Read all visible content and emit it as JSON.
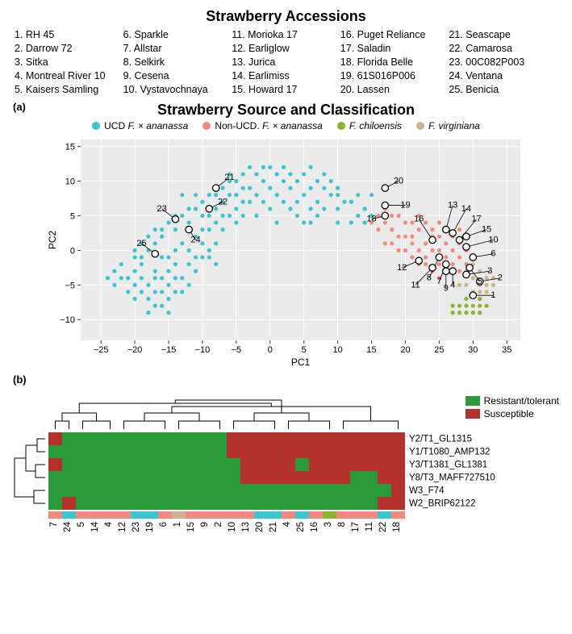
{
  "accessions": {
    "title": "Strawberry Accessions",
    "items": [
      "1. RH 45",
      "2. Darrow 72",
      "3. Sitka",
      "4. Montreal River 10",
      "5. Kaisers Samling",
      "6. Sparkle",
      "7. Allstar",
      "8. Selkirk",
      "9. Cesena",
      "10. Vystavochnaya",
      "11. Morioka 17",
      "12. Earliglow",
      "13. Jurica",
      "14. Earlimiss",
      "15. Howard 17",
      "16. Puget Reliance",
      "17. Saladin",
      "18. Florida Belle",
      "19. 61S016P006",
      "20. Lassen",
      "21. Seascape",
      "22. Camarosa",
      "23. 00C082P003",
      "24. Ventana",
      "25. Benicia"
    ]
  },
  "panel_a_label": "(a)",
  "panel_b_label": "(b)",
  "scatter": {
    "title": "Strawberry Source and Classification",
    "xlabel": "PC1",
    "ylabel": "PC2",
    "xlim": [
      -28,
      37
    ],
    "ylim": [
      -13,
      16
    ],
    "xticks": [
      -25,
      -20,
      -15,
      -10,
      -5,
      0,
      5,
      10,
      15,
      20,
      25,
      30,
      35
    ],
    "yticks": [
      -10,
      -5,
      0,
      5,
      10,
      15
    ],
    "bg": "#ebebeb",
    "grid": "#ffffff",
    "series": [
      {
        "name": "UCD F. × ananassa",
        "color": "#3bc6cf",
        "italic_part": "F. × ananassa"
      },
      {
        "name": "Non-UCD. F. × ananassa",
        "color": "#f48a7f",
        "italic_part": "F. × ananassa"
      },
      {
        "name": "F. chiloensis",
        "color": "#8bb52e",
        "italic_part": "F. chiloensis"
      },
      {
        "name": "F. virginiana",
        "color": "#cbb58f",
        "italic_part": "F. virginiana"
      }
    ],
    "cloud": {
      "ucd": {
        "color": "#3bc6cf",
        "points": [
          [
            -18,
            -5
          ],
          [
            -17,
            -3
          ],
          [
            -16,
            -4
          ],
          [
            -19,
            -2
          ],
          [
            -18,
            -7
          ],
          [
            -20,
            -5
          ],
          [
            -17,
            -6
          ],
          [
            -15,
            -3
          ],
          [
            -16,
            -1
          ],
          [
            -18,
            0
          ],
          [
            -19,
            -4
          ],
          [
            -17,
            1
          ],
          [
            -15,
            -5
          ],
          [
            -14,
            -2
          ],
          [
            -20,
            -3
          ],
          [
            -16,
            -6
          ],
          [
            -15,
            -7
          ],
          [
            -13,
            -4
          ],
          [
            -14,
            0
          ],
          [
            -12,
            -2
          ],
          [
            -13,
            1
          ],
          [
            -11,
            -3
          ],
          [
            -10,
            -1
          ],
          [
            -12,
            -5
          ],
          [
            -11,
            2
          ],
          [
            -9,
            0
          ],
          [
            -10,
            3
          ],
          [
            -8,
            1
          ],
          [
            -9,
            5
          ],
          [
            -7,
            3
          ],
          [
            -8,
            6
          ],
          [
            -7,
            7
          ],
          [
            -6,
            5
          ],
          [
            -5,
            6
          ],
          [
            -6,
            8
          ],
          [
            -4,
            7
          ],
          [
            -3,
            9
          ],
          [
            -5,
            10
          ],
          [
            -2,
            8
          ],
          [
            -4,
            11
          ],
          [
            -1,
            10
          ],
          [
            0,
            9
          ],
          [
            -3,
            12
          ],
          [
            1,
            8
          ],
          [
            2,
            10
          ],
          [
            -1,
            12
          ],
          [
            3,
            9
          ],
          [
            2,
            12
          ],
          [
            4,
            10
          ],
          [
            0,
            12
          ],
          [
            5,
            8
          ],
          [
            4,
            7
          ],
          [
            3,
            11
          ],
          [
            6,
            9
          ],
          [
            5,
            11
          ],
          [
            7,
            10
          ],
          [
            6,
            12
          ],
          [
            7,
            7
          ],
          [
            8,
            9
          ],
          [
            8,
            6
          ],
          [
            -21,
            -4
          ],
          [
            -22,
            -2
          ],
          [
            -19,
            -6
          ],
          [
            -16,
            2
          ],
          [
            -15,
            4
          ],
          [
            -14,
            3
          ],
          [
            -13,
            5
          ],
          [
            -12,
            4
          ],
          [
            -11,
            6
          ],
          [
            -10,
            7
          ],
          [
            -18,
            -9
          ],
          [
            -17,
            -8
          ],
          [
            -21,
            -6
          ],
          [
            -20,
            -7
          ],
          [
            -15,
            -1
          ],
          [
            -14,
            -4
          ],
          [
            -13,
            -6
          ],
          [
            -16,
            -8
          ],
          [
            -10,
            5
          ],
          [
            -9,
            3
          ],
          [
            -8,
            4
          ],
          [
            -9,
            8
          ],
          [
            -7,
            9
          ],
          [
            -6,
            10
          ],
          [
            -19,
            -1
          ],
          [
            -18,
            2
          ],
          [
            -17,
            3
          ],
          [
            -22,
            -4
          ],
          [
            -23,
            -3
          ],
          [
            -20,
            -1
          ],
          [
            -19,
            1
          ],
          [
            -16,
            3
          ],
          [
            -14,
            5
          ],
          [
            -12,
            6
          ],
          [
            -13,
            8
          ],
          [
            -11,
            8
          ],
          [
            -8,
            8
          ],
          [
            -5,
            8
          ],
          [
            -6,
            11
          ],
          [
            1,
            11
          ],
          [
            2,
            7
          ],
          [
            -2,
            11
          ],
          [
            -4,
            9
          ],
          [
            -1,
            7
          ],
          [
            0,
            6
          ],
          [
            -3,
            7
          ],
          [
            -7,
            5
          ],
          [
            -14,
            -6
          ],
          [
            -12,
            0
          ],
          [
            -11,
            -1
          ],
          [
            -10,
            1
          ],
          [
            -8,
            -2
          ],
          [
            -9,
            -1
          ],
          [
            9,
            8
          ],
          [
            10,
            6
          ],
          [
            9,
            10
          ],
          [
            10,
            8
          ],
          [
            -15,
            -9
          ],
          [
            -20,
            0
          ],
          [
            -17,
            -4
          ],
          [
            1,
            4
          ],
          [
            3,
            6
          ],
          [
            4,
            5
          ],
          [
            5,
            4
          ],
          [
            6,
            6
          ],
          [
            -2,
            5
          ],
          [
            8,
            11
          ],
          [
            6,
            4
          ],
          [
            7,
            5
          ],
          [
            10,
            9
          ],
          [
            10,
            4
          ],
          [
            -5,
            4
          ],
          [
            -4,
            5
          ],
          [
            13,
            5
          ],
          [
            12,
            7
          ],
          [
            14,
            6
          ],
          [
            11,
            7
          ],
          [
            12,
            4
          ],
          [
            13,
            8
          ],
          [
            14,
            4
          ],
          [
            15,
            5
          ],
          [
            15,
            8
          ],
          [
            -23,
            -5
          ],
          [
            -24,
            -4
          ]
        ]
      },
      "nonucd": {
        "color": "#f48a7f",
        "points": [
          [
            17,
            4
          ],
          [
            18,
            3
          ],
          [
            19,
            5
          ],
          [
            20,
            2
          ],
          [
            21,
            4
          ],
          [
            22,
            3
          ],
          [
            23,
            1
          ],
          [
            24,
            2
          ],
          [
            25,
            0
          ],
          [
            23,
            4
          ],
          [
            24,
            0
          ],
          [
            26,
            1
          ],
          [
            25,
            2
          ],
          [
            27,
            0
          ],
          [
            26,
            -1
          ],
          [
            22,
            0
          ],
          [
            21,
            1
          ],
          [
            20,
            4
          ],
          [
            19,
            2
          ],
          [
            18,
            5
          ],
          [
            17,
            6
          ],
          [
            20,
            0
          ],
          [
            21,
            -1
          ],
          [
            22,
            -2
          ],
          [
            25,
            -2
          ],
          [
            27,
            -2
          ],
          [
            28,
            -1
          ],
          [
            28,
            1
          ],
          [
            29,
            0
          ],
          [
            24,
            3
          ],
          [
            25,
            4
          ],
          [
            16,
            3
          ],
          [
            17,
            1
          ],
          [
            23,
            -2
          ],
          [
            21,
            2
          ],
          [
            26,
            3
          ],
          [
            27,
            2
          ],
          [
            28,
            -3
          ],
          [
            18,
            1
          ],
          [
            19,
            0
          ],
          [
            16,
            5
          ],
          [
            15,
            4
          ],
          [
            29,
            -2
          ],
          [
            22,
            5
          ],
          [
            23,
            -1
          ],
          [
            24,
            -3
          ],
          [
            25,
            -4
          ],
          [
            28,
            3
          ]
        ]
      },
      "chil": {
        "color": "#8bb52e",
        "points": [
          [
            28,
            -8
          ],
          [
            29,
            -7
          ],
          [
            30,
            -8
          ],
          [
            31,
            -7
          ],
          [
            29,
            -9
          ],
          [
            30,
            -9
          ],
          [
            31,
            -8
          ],
          [
            32,
            -8
          ],
          [
            28,
            -9
          ],
          [
            27,
            -8
          ],
          [
            30,
            -6
          ],
          [
            29,
            -8
          ],
          [
            31,
            -9
          ],
          [
            27,
            -9
          ]
        ]
      },
      "virg": {
        "color": "#cbb58f",
        "points": [
          [
            29,
            -5
          ],
          [
            30,
            -4
          ],
          [
            31,
            -5
          ],
          [
            30,
            -6
          ],
          [
            32,
            -5
          ],
          [
            31,
            -3
          ],
          [
            29,
            -3
          ],
          [
            30,
            -2
          ],
          [
            32,
            -6
          ],
          [
            33,
            -5
          ],
          [
            31,
            -6
          ],
          [
            28,
            -5
          ],
          [
            32,
            -4
          ],
          [
            33,
            -4
          ]
        ]
      }
    },
    "numbered": [
      {
        "n": 1,
        "x": 30,
        "y": -6.5,
        "lx": 33,
        "ly": -6.5
      },
      {
        "n": 2,
        "x": 31,
        "y": -4.5,
        "lx": 34,
        "ly": -4
      },
      {
        "n": 3,
        "x": 29,
        "y": -3.5,
        "lx": 32.5,
        "ly": -3
      },
      {
        "n": 4,
        "x": 27,
        "y": -3,
        "lx": 27,
        "ly": -5
      },
      {
        "n": 5,
        "x": 29.5,
        "y": -2.5,
        "lx": 31,
        "ly": -4.5
      },
      {
        "n": 6,
        "x": 30,
        "y": -1,
        "lx": 33,
        "ly": -0.5
      },
      {
        "n": 7,
        "x": 26,
        "y": -2,
        "lx": 25,
        "ly": -4.5
      },
      {
        "n": 8,
        "x": 25,
        "y": -1,
        "lx": 23.5,
        "ly": -4
      },
      {
        "n": 9,
        "x": 26,
        "y": -3,
        "lx": 26,
        "ly": -5.5
      },
      {
        "n": 10,
        "x": 29,
        "y": 0.5,
        "lx": 33,
        "ly": 1.5
      },
      {
        "n": 11,
        "x": 24,
        "y": -2.5,
        "lx": 21.5,
        "ly": -5
      },
      {
        "n": 12,
        "x": 22,
        "y": -1.5,
        "lx": 19.5,
        "ly": -2.5
      },
      {
        "n": 13,
        "x": 26,
        "y": 3,
        "lx": 27,
        "ly": 6.5
      },
      {
        "n": 14,
        "x": 27,
        "y": 2.5,
        "lx": 29,
        "ly": 6
      },
      {
        "n": 15,
        "x": 29,
        "y": 2,
        "lx": 32,
        "ly": 3
      },
      {
        "n": 16,
        "x": 24,
        "y": 1.5,
        "lx": 22,
        "ly": 4.5
      },
      {
        "n": 17,
        "x": 28,
        "y": 1.5,
        "lx": 30.5,
        "ly": 4.5
      },
      {
        "n": 18,
        "x": 17,
        "y": 5,
        "lx": 15,
        "ly": 4.5
      },
      {
        "n": 19,
        "x": 17,
        "y": 6.5,
        "lx": 20,
        "ly": 6.5
      },
      {
        "n": 20,
        "x": 17,
        "y": 9,
        "lx": 19,
        "ly": 10
      },
      {
        "n": 21,
        "x": -8,
        "y": 9,
        "lx": -6,
        "ly": 10.5
      },
      {
        "n": 22,
        "x": -9,
        "y": 6,
        "lx": -7,
        "ly": 7
      },
      {
        "n": 23,
        "x": -14,
        "y": 4.5,
        "lx": -16,
        "ly": 6
      },
      {
        "n": 24,
        "x": -12,
        "y": 3,
        "lx": -11,
        "ly": 1.5
      },
      {
        "n": 25,
        "x": -17,
        "y": -0.5,
        "lx": -19,
        "ly": 1
      }
    ]
  },
  "heatmap": {
    "colors": {
      "resistant": "#2b9b3a",
      "susceptible": "#b1322c"
    },
    "legend": [
      {
        "label": "Resistant/tolerant",
        "color": "#2b9b3a"
      },
      {
        "label": "Susceptible",
        "color": "#b1322c"
      }
    ],
    "rows": [
      "Y2/T1_GL1315",
      "Y1/T1080_AMP132",
      "Y3/T1381_GL1381",
      "Y8/T3_MAFF727510",
      "W3_F74",
      "W2_BRIP62122"
    ],
    "cols": [
      "7",
      "24",
      "5",
      "14",
      "4",
      "12",
      "23",
      "19",
      "6",
      "1",
      "15",
      "9",
      "2",
      "10",
      "13",
      "20",
      "21",
      "4",
      "25",
      "16",
      "3",
      "8",
      "17",
      "11",
      "22",
      "18"
    ],
    "col_classes": [
      "N",
      "U",
      "N",
      "N",
      "N",
      "N",
      "U",
      "U",
      "N",
      "V",
      "N",
      "N",
      "N",
      "N",
      "N",
      "U",
      "U",
      "N",
      "U",
      "N",
      "C",
      "N",
      "N",
      "N",
      "U",
      "N"
    ],
    "class_colors": {
      "U": "#3bc6cf",
      "N": "#f48a7f",
      "C": "#8bb52e",
      "V": "#cbb58f"
    },
    "matrix": [
      [
        1,
        0,
        0,
        0,
        0,
        0,
        0,
        0,
        0,
        0,
        0,
        0,
        0,
        1,
        1,
        1,
        1,
        1,
        1,
        1,
        1,
        1,
        1,
        1,
        1,
        1
      ],
      [
        0,
        0,
        0,
        0,
        0,
        0,
        0,
        0,
        0,
        0,
        0,
        0,
        0,
        1,
        1,
        1,
        1,
        1,
        1,
        1,
        1,
        1,
        1,
        1,
        1,
        1
      ],
      [
        1,
        0,
        0,
        0,
        0,
        0,
        0,
        0,
        0,
        0,
        0,
        0,
        0,
        0,
        1,
        1,
        1,
        1,
        0,
        1,
        1,
        1,
        1,
        1,
        1,
        1
      ],
      [
        0,
        0,
        0,
        0,
        0,
        0,
        0,
        0,
        0,
        0,
        0,
        0,
        0,
        0,
        1,
        1,
        1,
        1,
        1,
        1,
        1,
        1,
        0,
        0,
        1,
        1
      ],
      [
        0,
        0,
        0,
        0,
        0,
        0,
        0,
        0,
        0,
        0,
        0,
        0,
        0,
        0,
        0,
        0,
        0,
        0,
        0,
        0,
        0,
        0,
        0,
        0,
        0,
        1
      ],
      [
        0,
        1,
        0,
        0,
        0,
        0,
        0,
        0,
        0,
        0,
        0,
        0,
        0,
        0,
        0,
        0,
        0,
        0,
        0,
        0,
        0,
        0,
        0,
        0,
        1,
        1
      ]
    ]
  }
}
